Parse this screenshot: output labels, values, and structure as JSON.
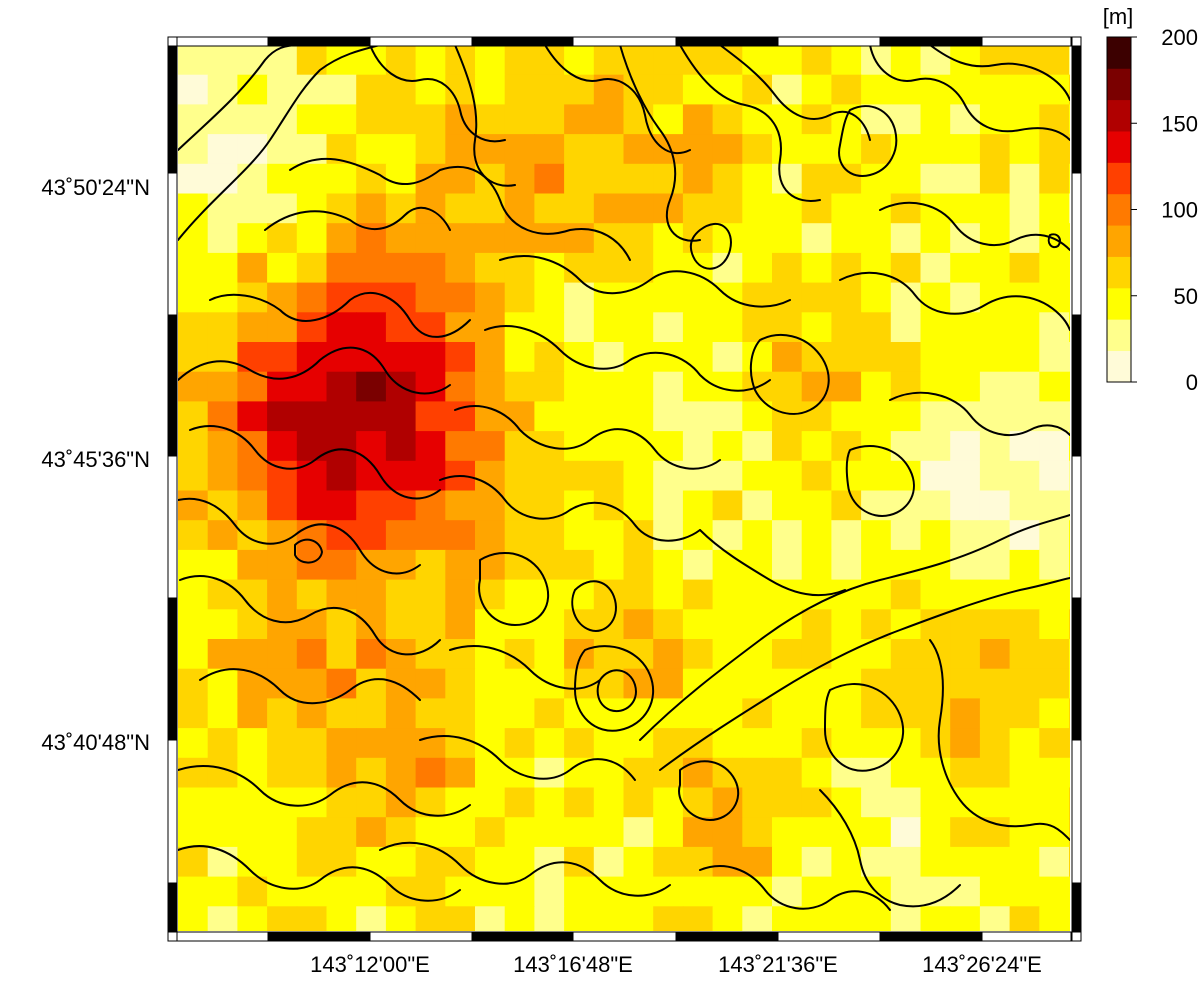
{
  "map": {
    "lat_ticks": [
      "43˚50'24\"N",
      "43˚45'36\"N",
      "43˚40'48\"N"
    ],
    "lon_ticks": [
      "143˚12'00\"E",
      "143˚16'48\"E",
      "143˚21'36\"E",
      "143˚26'24\"E"
    ],
    "contour_color": "#000000",
    "frame_colors": [
      "#000000",
      "#ffffff"
    ]
  },
  "colorbar": {
    "unit_label": "[m]",
    "tick_labels": [
      "0",
      "50",
      "100",
      "150",
      "200"
    ],
    "range": [
      0,
      200
    ],
    "palette": [
      "#fffbd8",
      "#ffff8c",
      "#ffff00",
      "#ffd500",
      "#ffa500",
      "#ff7a00",
      "#ff4000",
      "#e60000",
      "#b00000",
      "#7a0000",
      "#3c0000"
    ]
  }
}
